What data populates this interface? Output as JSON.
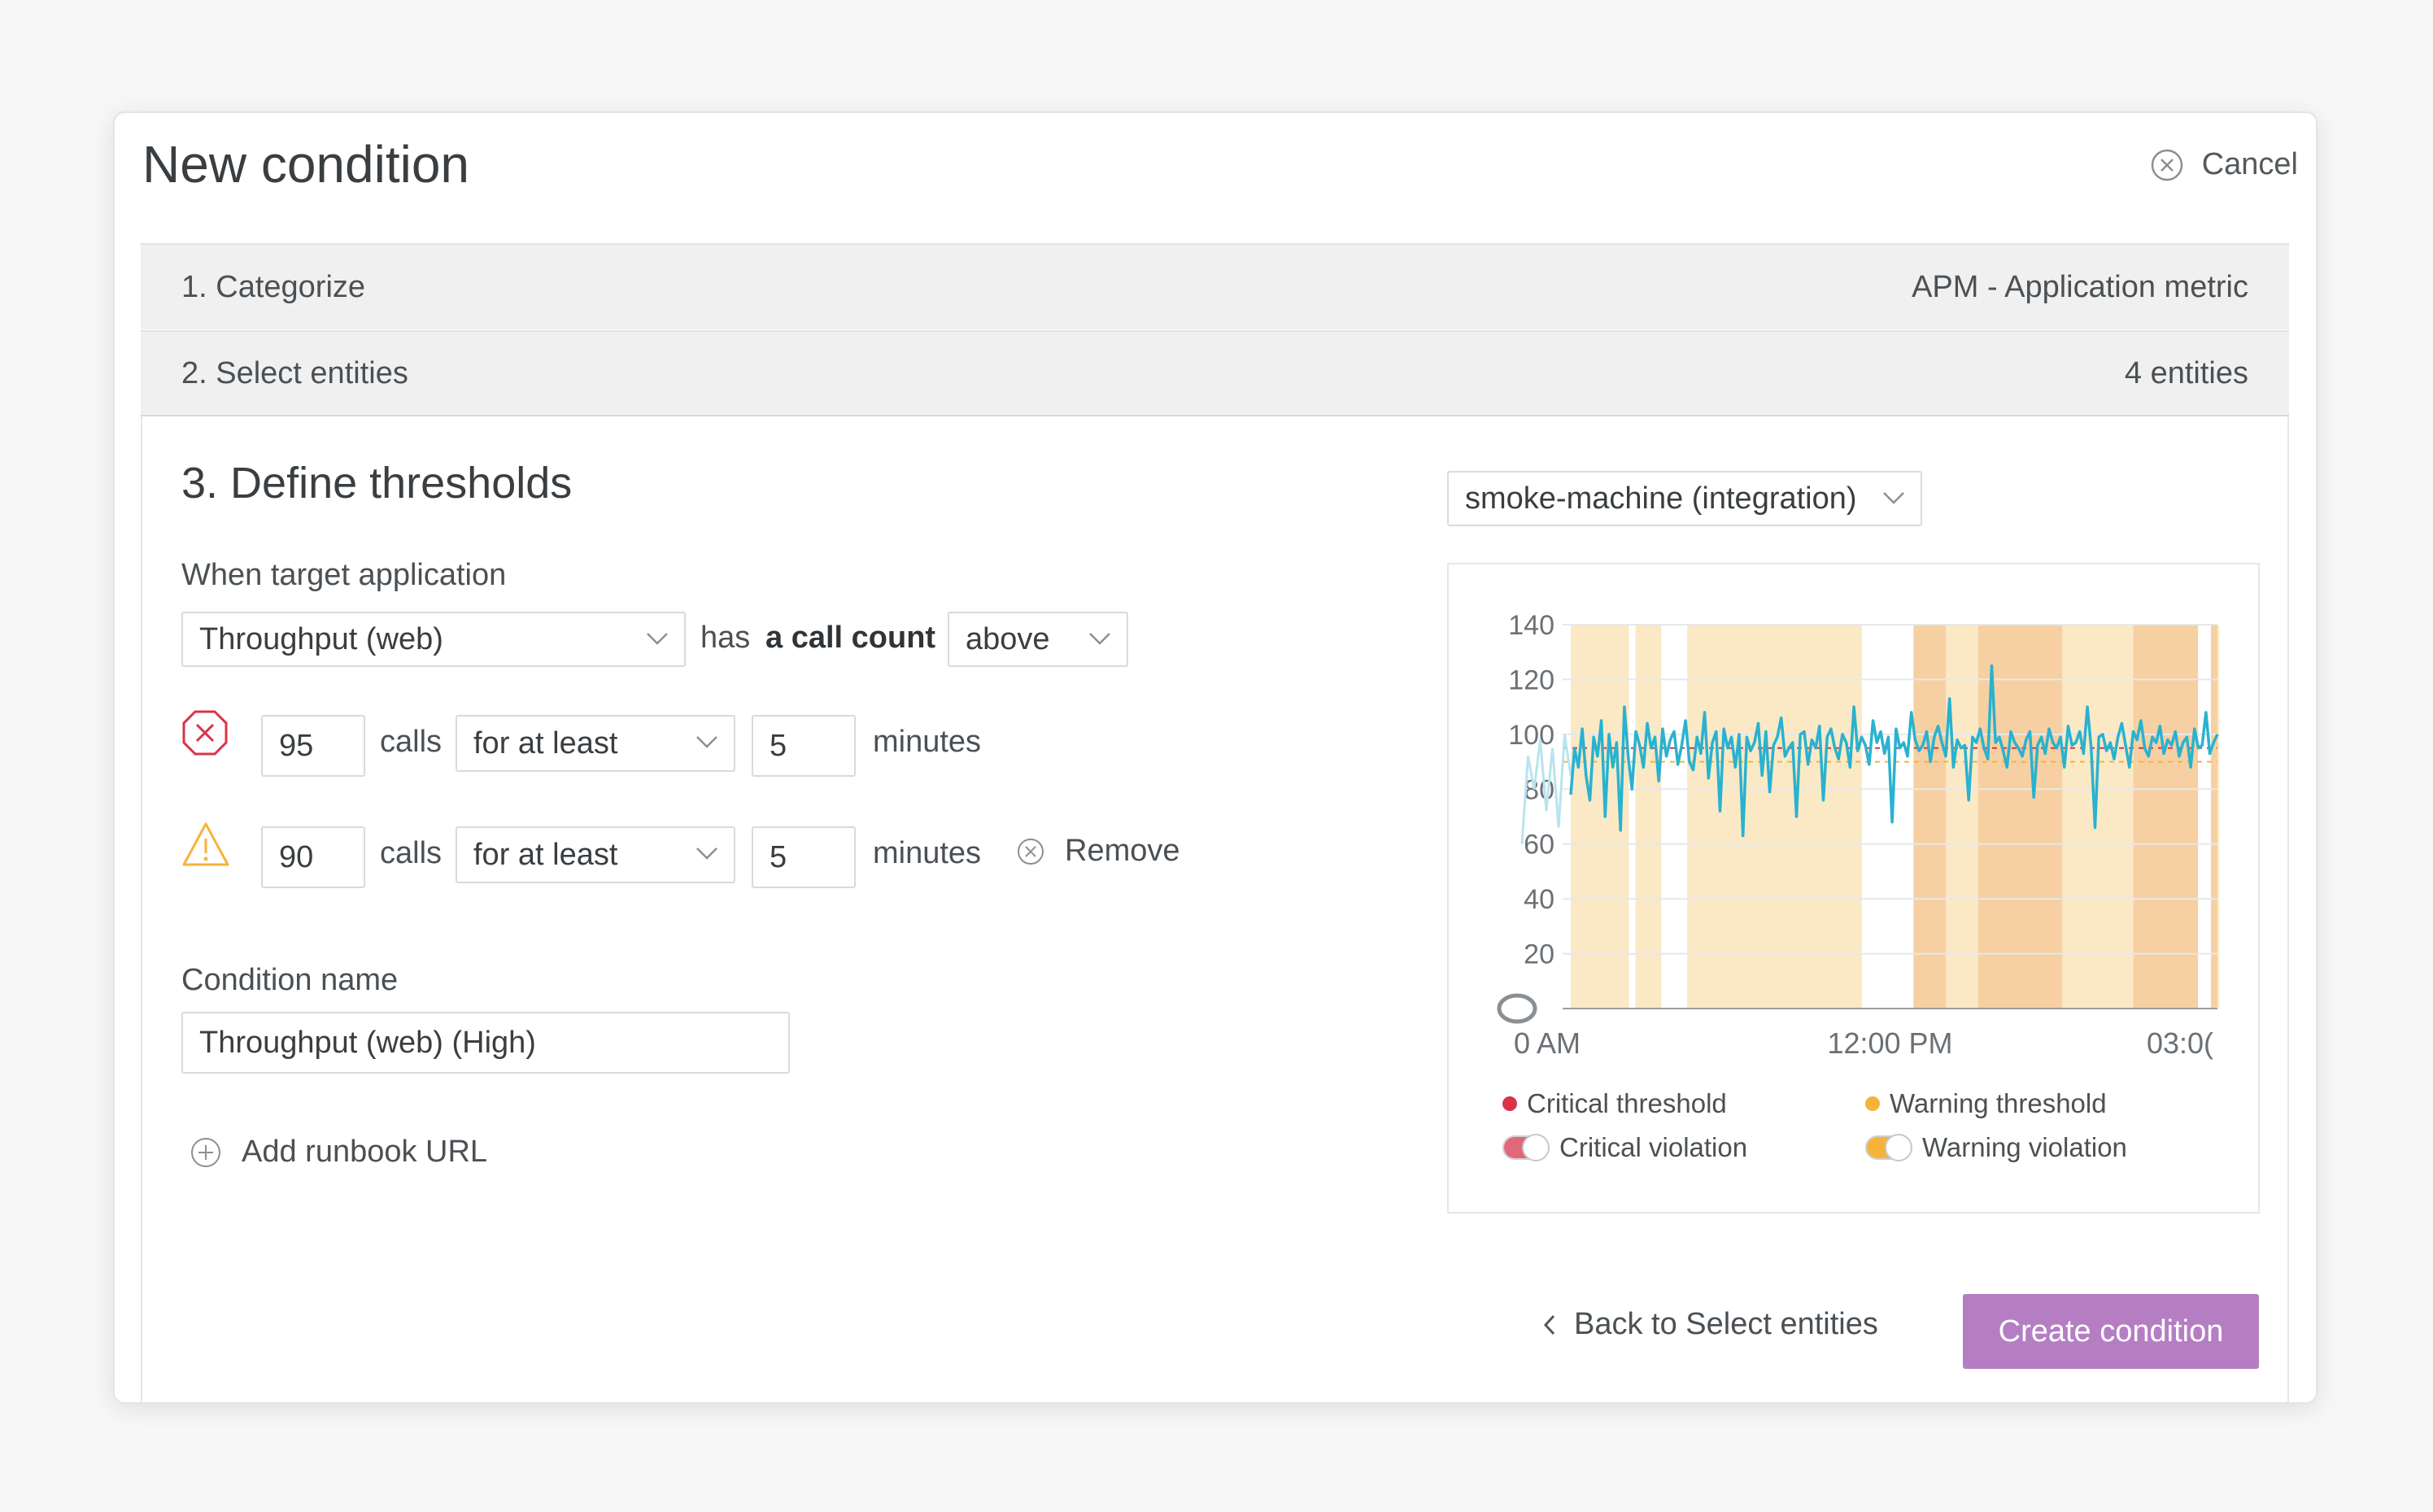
{
  "modal": {
    "title": "New condition",
    "cancel_label": "Cancel"
  },
  "steps": [
    {
      "label": "1. Categorize",
      "value": "APM - Application metric"
    },
    {
      "label": "2. Select entities",
      "value": "4 entities"
    }
  ],
  "thresholds": {
    "title": "3. Define thresholds",
    "when_label": "When target application",
    "metric_select": "Throughput (web)",
    "has_text": "has",
    "call_count_text": "a call count",
    "operator_select": "above",
    "critical": {
      "value": "95",
      "unit": "calls",
      "duration_select": "for at least",
      "minutes_value": "5",
      "minutes_label": "minutes"
    },
    "warning": {
      "value": "90",
      "unit": "calls",
      "duration_select": "for at least",
      "minutes_value": "5",
      "minutes_label": "minutes",
      "remove_label": "Remove"
    },
    "condition_name_label": "Condition name",
    "condition_name_value": "Throughput (web) (High)",
    "add_runbook_label": "Add runbook URL"
  },
  "entity_select": "smoke-machine (integration)",
  "chart_data": {
    "type": "line",
    "y_ticks": [
      "140",
      "120",
      "100",
      "80",
      "60",
      "40",
      "20"
    ],
    "ylim": [
      0,
      140
    ],
    "x_ticks": [
      "0 AM",
      "12:00 PM",
      "03:0("
    ],
    "threshold_value": 95,
    "series": [
      {
        "values": [
          78,
          95,
          88,
          102,
          85,
          76,
          99,
          92,
          105,
          70,
          100,
          88,
          97,
          65,
          110,
          92,
          80,
          101,
          96,
          88,
          104,
          95,
          99,
          83,
          102,
          92,
          98,
          101,
          89,
          96,
          105,
          90,
          87,
          99,
          93,
          108,
          84,
          97,
          101,
          72,
          102,
          95,
          99,
          88,
          100,
          63,
          99,
          94,
          97,
          104,
          85,
          101,
          79,
          96,
          99,
          106,
          92,
          95,
          97,
          70,
          100,
          101,
          89,
          98,
          95,
          103,
          76,
          99,
          102,
          95,
          91,
          100,
          97,
          88,
          110,
          94,
          99,
          96,
          89,
          105,
          97,
          101,
          93,
          99,
          68,
          102,
          95,
          97,
          92,
          108,
          98,
          94,
          96,
          101,
          90,
          99,
          103,
          97,
          92,
          113,
          88,
          98,
          95,
          96,
          76,
          99,
          97,
          102,
          95,
          91,
          125,
          97,
          99,
          94,
          88,
          101,
          97,
          95,
          92,
          98,
          101,
          77,
          96,
          99,
          93,
          102,
          97,
          95,
          99,
          88,
          103,
          96,
          97,
          101,
          93,
          110,
          95,
          66,
          99,
          100,
          94,
          97,
          91,
          99,
          104,
          96,
          88,
          101,
          98,
          105,
          95,
          92,
          99,
          97,
          103,
          93,
          98,
          96,
          101,
          92,
          97,
          99,
          88,
          102,
          95,
          96,
          108,
          93,
          97,
          100
        ]
      }
    ],
    "bands_warning": [
      [
        0.0,
        0.09
      ],
      [
        0.1,
        0.14
      ],
      [
        0.18,
        0.45
      ],
      [
        0.53,
        0.96
      ],
      [
        1.0,
        1.0
      ]
    ],
    "bands_critical": [
      [
        0.53,
        0.58
      ],
      [
        0.63,
        0.76
      ],
      [
        0.87,
        0.97
      ],
      [
        0.99,
        1.0
      ]
    ]
  },
  "legend": {
    "critical_threshold": "Critical threshold",
    "warning_threshold": "Warning threshold",
    "critical_violation": "Critical violation",
    "warning_violation": "Warning violation"
  },
  "colors": {
    "accent": "#b57ec3",
    "critical": "#d9334a",
    "warning": "#f5b33c",
    "series": "#29b2cf",
    "band_warning": "#fbe9c6",
    "band_critical": "#f6d0a3"
  },
  "footer": {
    "back_label": "Back to Select entities",
    "create_label": "Create condition"
  }
}
